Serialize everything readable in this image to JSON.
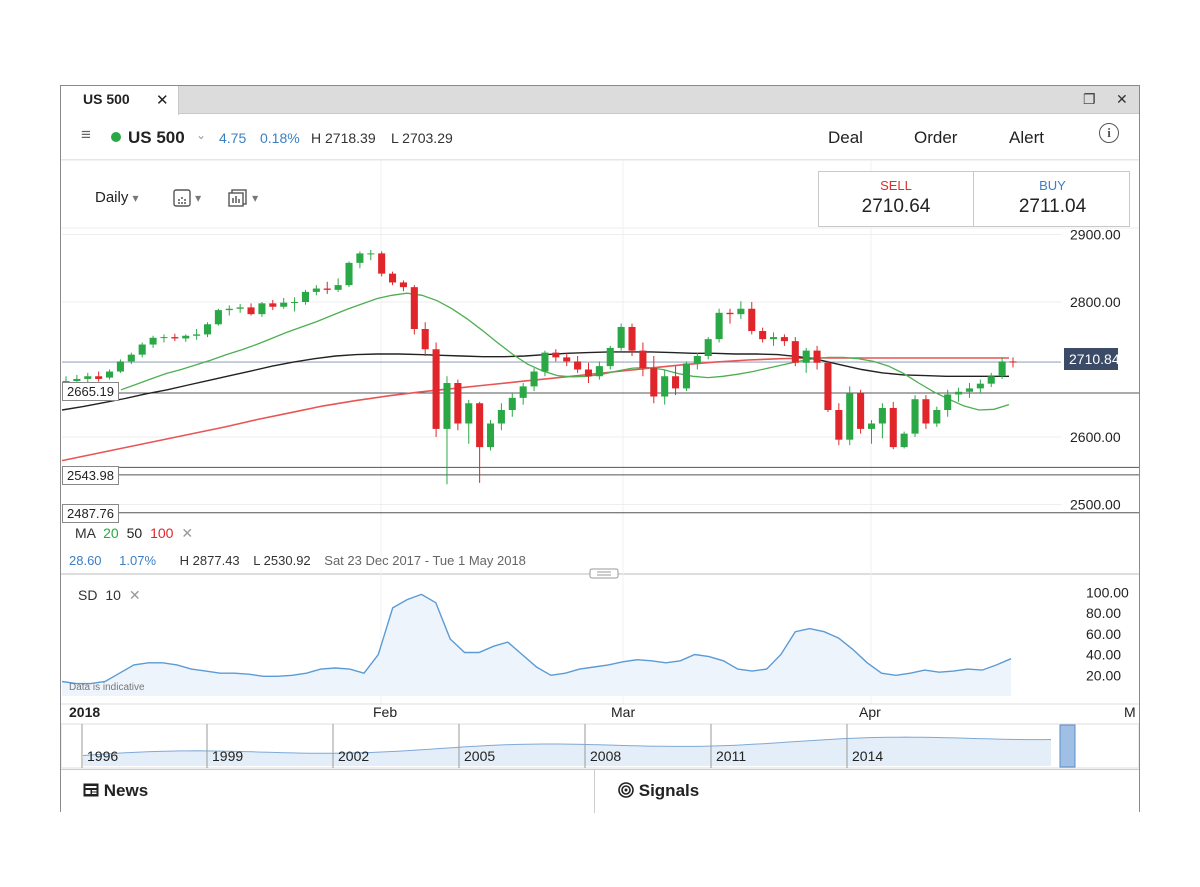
{
  "tab": {
    "title": "US 500",
    "close": "✕"
  },
  "window_buttons": {
    "restore": "❐",
    "close": "✕"
  },
  "toolbar": {
    "menu": "≡",
    "instrument": "US 500",
    "chevron": "⌄",
    "change": "4.75",
    "change_pct": "0.18%",
    "high": "H 2718.39",
    "low": "L 2703.29",
    "deal": "Deal",
    "order": "Order",
    "alert": "Alert",
    "info": "i"
  },
  "controls": {
    "interval": "Daily",
    "dropdown": "▾"
  },
  "deal": {
    "sell_label": "SELL",
    "sell_price": "2710.64",
    "buy_label": "BUY",
    "buy_price": "2711.04"
  },
  "levels": {
    "l1": "2665.19",
    "l2": "2543.98",
    "l3": "2487.76",
    "current": "2710.84"
  },
  "ma_legend": {
    "label": "MA",
    "p1": "20",
    "p2": "50",
    "p3": "100",
    "remove": "✕"
  },
  "stats": {
    "change": "28.60",
    "pct": "1.07%",
    "high": "H 2877.43",
    "low": "L 2530.92",
    "range": "Sat 23 Dec 2017 - Tue 1 May 2018"
  },
  "sd_legend": {
    "label": "SD",
    "period": "10",
    "remove": "✕"
  },
  "disclaimer": "Data is indicative",
  "time_axis": [
    "2018",
    "Feb",
    "Mar",
    "Apr",
    "M"
  ],
  "navigator_years": [
    "1996",
    "1999",
    "2002",
    "2005",
    "2008",
    "2011",
    "2014"
  ],
  "bottom": {
    "news": "News",
    "signals": "Signals"
  },
  "colors": {
    "up": "#2aa845",
    "down": "#e0262b",
    "ma20": "#4caf50",
    "ma50": "#222222",
    "ma100": "#e85555",
    "sd": "#5b9bd5",
    "accent": "#3b7fc4"
  },
  "chart_data": {
    "type": "candlestick",
    "y_ticks": [
      "2900.00",
      "2800.00",
      "2600.00",
      "2500.00"
    ],
    "sd_ticks": [
      "100.00",
      "80.00",
      "60.00",
      "40.00",
      "20.00"
    ],
    "ylim": [
      2480,
      2920
    ],
    "sd_ylim": [
      0,
      110
    ],
    "candles": [
      [
        2673,
        2690,
        2670,
        2683
      ],
      [
        2683,
        2692,
        2678,
        2686
      ],
      [
        2686,
        2695,
        2680,
        2690
      ],
      [
        2690,
        2697,
        2682,
        2686
      ],
      [
        2688,
        2700,
        2685,
        2697
      ],
      [
        2697,
        2715,
        2695,
        2712
      ],
      [
        2712,
        2725,
        2708,
        2722
      ],
      [
        2722,
        2740,
        2718,
        2737
      ],
      [
        2737,
        2750,
        2732,
        2747
      ],
      [
        2747,
        2752,
        2740,
        2748
      ],
      [
        2748,
        2753,
        2742,
        2746
      ],
      [
        2746,
        2752,
        2741,
        2750
      ],
      [
        2750,
        2760,
        2744,
        2752
      ],
      [
        2752,
        2770,
        2748,
        2767
      ],
      [
        2767,
        2790,
        2765,
        2788
      ],
      [
        2788,
        2795,
        2780,
        2790
      ],
      [
        2790,
        2797,
        2784,
        2792
      ],
      [
        2792,
        2798,
        2780,
        2782
      ],
      [
        2782,
        2800,
        2778,
        2798
      ],
      [
        2798,
        2803,
        2788,
        2793
      ],
      [
        2793,
        2806,
        2790,
        2799
      ],
      [
        2799,
        2807,
        2786,
        2800
      ],
      [
        2800,
        2818,
        2796,
        2815
      ],
      [
        2815,
        2825,
        2810,
        2820
      ],
      [
        2820,
        2830,
        2812,
        2818
      ],
      [
        2818,
        2835,
        2815,
        2825
      ],
      [
        2825,
        2860,
        2822,
        2858
      ],
      [
        2858,
        2875,
        2850,
        2872
      ],
      [
        2872,
        2877,
        2862,
        2872
      ],
      [
        2872,
        2875,
        2838,
        2842
      ],
      [
        2842,
        2845,
        2825,
        2829
      ],
      [
        2829,
        2832,
        2816,
        2822
      ],
      [
        2822,
        2825,
        2752,
        2760
      ],
      [
        2760,
        2770,
        2720,
        2730
      ],
      [
        2730,
        2740,
        2600,
        2612
      ],
      [
        2612,
        2690,
        2530,
        2680
      ],
      [
        2680,
        2685,
        2610,
        2620
      ],
      [
        2620,
        2655,
        2590,
        2650
      ],
      [
        2650,
        2652,
        2532,
        2585
      ],
      [
        2585,
        2625,
        2580,
        2620
      ],
      [
        2620,
        2650,
        2610,
        2640
      ],
      [
        2640,
        2665,
        2630,
        2658
      ],
      [
        2658,
        2680,
        2648,
        2675
      ],
      [
        2675,
        2702,
        2668,
        2697
      ],
      [
        2697,
        2728,
        2690,
        2725
      ],
      [
        2725,
        2730,
        2712,
        2718
      ],
      [
        2718,
        2725,
        2705,
        2712
      ],
      [
        2712,
        2720,
        2695,
        2700
      ],
      [
        2700,
        2710,
        2680,
        2690
      ],
      [
        2690,
        2712,
        2685,
        2705
      ],
      [
        2705,
        2735,
        2700,
        2732
      ],
      [
        2732,
        2768,
        2728,
        2763
      ],
      [
        2763,
        2768,
        2720,
        2728
      ],
      [
        2728,
        2740,
        2690,
        2702
      ],
      [
        2702,
        2720,
        2650,
        2660
      ],
      [
        2660,
        2700,
        2648,
        2690
      ],
      [
        2690,
        2705,
        2662,
        2672
      ],
      [
        2672,
        2712,
        2668,
        2709
      ],
      [
        2709,
        2725,
        2700,
        2720
      ],
      [
        2720,
        2748,
        2715,
        2745
      ],
      [
        2745,
        2790,
        2740,
        2784
      ],
      [
        2784,
        2790,
        2768,
        2782
      ],
      [
        2782,
        2801,
        2775,
        2790
      ],
      [
        2790,
        2800,
        2752,
        2757
      ],
      [
        2757,
        2762,
        2740,
        2745
      ],
      [
        2745,
        2755,
        2735,
        2748
      ],
      [
        2748,
        2752,
        2735,
        2742
      ],
      [
        2742,
        2748,
        2705,
        2710
      ],
      [
        2710,
        2732,
        2695,
        2728
      ],
      [
        2728,
        2735,
        2700,
        2710
      ],
      [
        2710,
        2713,
        2637,
        2640
      ],
      [
        2640,
        2650,
        2588,
        2596
      ],
      [
        2596,
        2675,
        2588,
        2665
      ],
      [
        2665,
        2670,
        2605,
        2612
      ],
      [
        2612,
        2625,
        2590,
        2620
      ],
      [
        2620,
        2650,
        2598,
        2643
      ],
      [
        2643,
        2652,
        2582,
        2585
      ],
      [
        2585,
        2608,
        2583,
        2605
      ],
      [
        2605,
        2662,
        2600,
        2656
      ],
      [
        2656,
        2662,
        2612,
        2620
      ],
      [
        2620,
        2645,
        2615,
        2640
      ],
      [
        2640,
        2670,
        2630,
        2663
      ],
      [
        2663,
        2673,
        2652,
        2667
      ],
      [
        2667,
        2680,
        2658,
        2672
      ],
      [
        2672,
        2685,
        2665,
        2679
      ],
      [
        2679,
        2695,
        2674,
        2690
      ],
      [
        2690,
        2718,
        2686,
        2712
      ],
      [
        2712,
        2718,
        2703,
        2711
      ]
    ],
    "ma20": [
      2670,
      2678,
      2686,
      2694,
      2700,
      2707,
      2714,
      2722,
      2729,
      2737,
      2746,
      2755,
      2763,
      2771,
      2780,
      2789,
      2797,
      2805,
      2810,
      2813,
      2810,
      2802,
      2790,
      2775,
      2758,
      2740,
      2723,
      2708,
      2698,
      2691,
      2689,
      2690,
      2693,
      2698,
      2702,
      2703,
      2700,
      2694,
      2690,
      2688,
      2690,
      2693,
      2697,
      2702,
      2707,
      2712,
      2716,
      2718,
      2718,
      2716,
      2712,
      2705,
      2694,
      2680,
      2667,
      2656,
      2646,
      2640,
      2641,
      2648
    ],
    "ma50": [
      2640,
      2645,
      2651,
      2657,
      2664,
      2670,
      2677,
      2684,
      2691,
      2698,
      2705,
      2711,
      2716,
      2720,
      2722,
      2723,
      2723,
      2722,
      2721,
      2720,
      2719,
      2719,
      2720,
      2722,
      2724,
      2725,
      2726,
      2726,
      2726,
      2725,
      2724,
      2724,
      2723,
      2723,
      2722,
      2719,
      2714,
      2707,
      2700,
      2695,
      2692,
      2691,
      2690,
      2690,
      2690,
      2690
    ],
    "ma100": [
      2565,
      2575,
      2585,
      2595,
      2605,
      2615,
      2626,
      2636,
      2646,
      2654,
      2661,
      2667,
      2672,
      2677,
      2682,
      2687,
      2692,
      2697,
      2702,
      2707,
      2711,
      2714,
      2716,
      2717,
      2717,
      2717,
      2717,
      2717,
      2717,
      2717
    ],
    "sd": [
      14,
      12,
      12,
      14,
      22,
      30,
      32,
      32,
      30,
      26,
      24,
      22,
      22,
      21,
      19,
      19,
      20,
      22,
      26,
      27,
      26,
      22,
      40,
      85,
      93,
      98,
      90,
      55,
      42,
      42,
      48,
      52,
      40,
      28,
      20,
      22,
      26,
      28,
      30,
      33,
      35,
      34,
      32,
      34,
      40,
      38,
      34,
      26,
      24,
      26,
      40,
      62,
      65,
      62,
      56,
      45,
      32,
      22,
      20,
      22,
      25,
      23,
      24,
      26,
      25,
      30,
      36
    ]
  }
}
